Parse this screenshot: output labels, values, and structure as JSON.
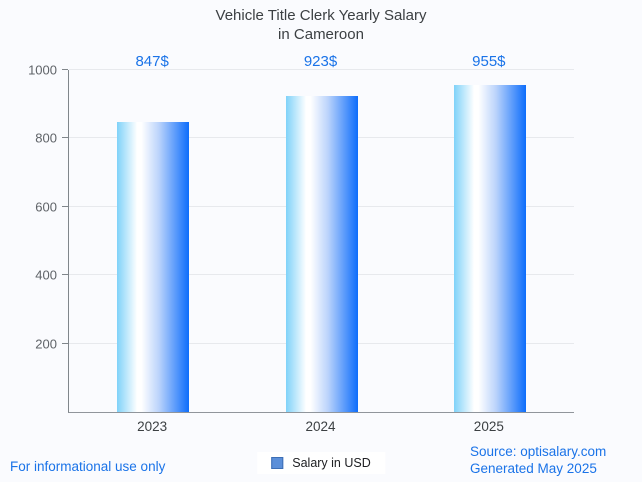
{
  "title": {
    "line1": "Vehicle Title Clerk Yearly Salary",
    "line2": "in Cameroon"
  },
  "legend": {
    "label": "Salary in USD",
    "swatch_color": "#5b8fd9",
    "swatch_border": "#3c6eb5"
  },
  "footer": {
    "left": "For informational use only",
    "source": "Source: optisalary.com",
    "generated": "Generated May 2025"
  },
  "colors": {
    "accent_blue": "#1a73e8",
    "title_text": "#3c4043",
    "axis_text": "#5f6368",
    "gridline": "#e7e9ed",
    "axis_line": "#80868b",
    "background": "#fafbfe",
    "bar_gradient": [
      "#7fd2f9",
      "#ffffff",
      "#bcd4fb",
      "#0d6dfb"
    ]
  },
  "chart_data": {
    "type": "bar",
    "title": "Vehicle Title Clerk Yearly Salary in Cameroon",
    "categories": [
      "2023",
      "2024",
      "2025"
    ],
    "values": [
      847,
      923,
      955
    ],
    "value_labels": [
      "847$",
      "923$",
      "955$"
    ],
    "series_name": "Salary in USD",
    "xlabel": "",
    "ylabel": "",
    "ylim": [
      0,
      1000
    ],
    "yticks": [
      200,
      400,
      600,
      800,
      1000
    ],
    "grid": true,
    "legend_position": "bottom"
  }
}
